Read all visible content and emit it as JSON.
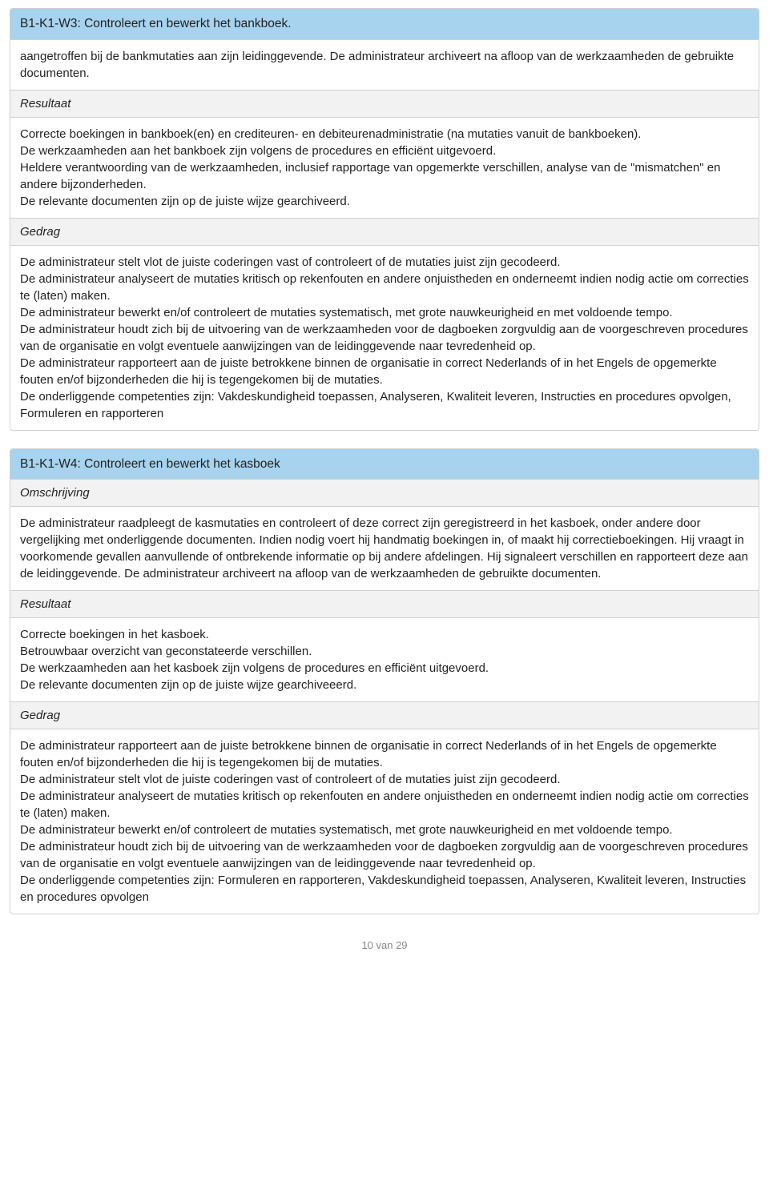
{
  "section1": {
    "title": "B1-K1-W3: Controleert en bewerkt het bankboek.",
    "intro": "aangetroffen bij de bankmutaties aan zijn leidinggevende. De administrateur archiveert na afloop van de werkzaamheden de gebruikte documenten.",
    "label_resultaat": "Resultaat",
    "resultaat": "Correcte boekingen in bankboek(en) en crediteuren- en debiteurenadministratie (na mutaties vanuit de bankboeken).\nDe werkzaamheden aan het bankboek zijn volgens de procedures en efficiënt uitgevoerd.\nHeldere verantwoording van de werkzaamheden, inclusief rapportage van opgemerkte verschillen, analyse van de \"mismatchen\" en andere bijzonderheden.\nDe relevante documenten zijn op de juiste wijze gearchiveerd.",
    "label_gedrag": "Gedrag",
    "gedrag": "De administrateur stelt vlot de juiste coderingen vast of controleert of de mutaties juist zijn gecodeerd.\nDe administrateur analyseert de mutaties kritisch op rekenfouten en andere onjuistheden en onderneemt indien nodig actie om correcties te (laten) maken.\nDe administrateur bewerkt en/of controleert de mutaties systematisch, met grote nauwkeurigheid en met voldoende tempo.\nDe administrateur houdt zich bij de uitvoering van de werkzaamheden voor de dagboeken zorgvuldig aan de voorgeschreven procedures van de organisatie en volgt eventuele aanwijzingen van de leidinggevende naar tevredenheid op.\nDe administrateur rapporteert aan de juiste betrokkene binnen de organisatie in correct Nederlands of in het Engels de opgemerkte fouten en/of bijzonderheden die hij is tegengekomen bij de mutaties.",
    "competencies": "De onderliggende competenties zijn: Vakdeskundigheid toepassen, Analyseren, Kwaliteit leveren, Instructies en procedures opvolgen, Formuleren en rapporteren"
  },
  "section2": {
    "title": "B1-K1-W4: Controleert en bewerkt het kasboek",
    "label_omschrijving": "Omschrijving",
    "omschrijving": "De administrateur raadpleegt de kasmutaties en controleert of deze correct zijn geregistreerd in het kasboek, onder andere door vergelijking met onderliggende documenten. Indien nodig voert hij handmatig boekingen in, of maakt hij correctieboekingen. Hij vraagt in voorkomende gevallen aanvullende of ontbrekende informatie op bij andere afdelingen. Hij signaleert verschillen en rapporteert deze aan de leidinggevende. De administrateur archiveert na afloop van de werkzaamheden de gebruikte documenten.",
    "label_resultaat": "Resultaat",
    "resultaat": "Correcte boekingen in het kasboek.\nBetrouwbaar overzicht van geconstateerde verschillen.\nDe werkzaamheden aan het kasboek zijn volgens de procedures en efficiënt uitgevoerd.\nDe relevante documenten zijn op de juiste wijze gearchiveeerd.",
    "label_gedrag": "Gedrag",
    "gedrag": "De administrateur rapporteert aan de juiste betrokkene binnen de organisatie in correct Nederlands of in het Engels de opgemerkte fouten en/of bijzonderheden die hij is tegengekomen bij de mutaties.\nDe administrateur stelt vlot de juiste coderingen vast of controleert of de mutaties juist zijn gecodeerd.\nDe administrateur analyseert de mutaties kritisch op rekenfouten en andere onjuistheden en onderneemt indien nodig actie om correcties te (laten) maken.\nDe administrateur bewerkt en/of controleert de mutaties systematisch, met grote nauwkeurigheid en met voldoende tempo.\nDe administrateur houdt zich bij de uitvoering van de werkzaamheden voor de dagboeken zorgvuldig aan de voorgeschreven procedures van de organisatie en volgt eventuele aanwijzingen van de leidinggevende naar tevredenheid op.",
    "competencies": "De onderliggende competenties zijn: Formuleren en rapporteren, Vakdeskundigheid toepassen, Analyseren, Kwaliteit leveren, Instructies en procedures opvolgen"
  },
  "footer": "10 van 29"
}
